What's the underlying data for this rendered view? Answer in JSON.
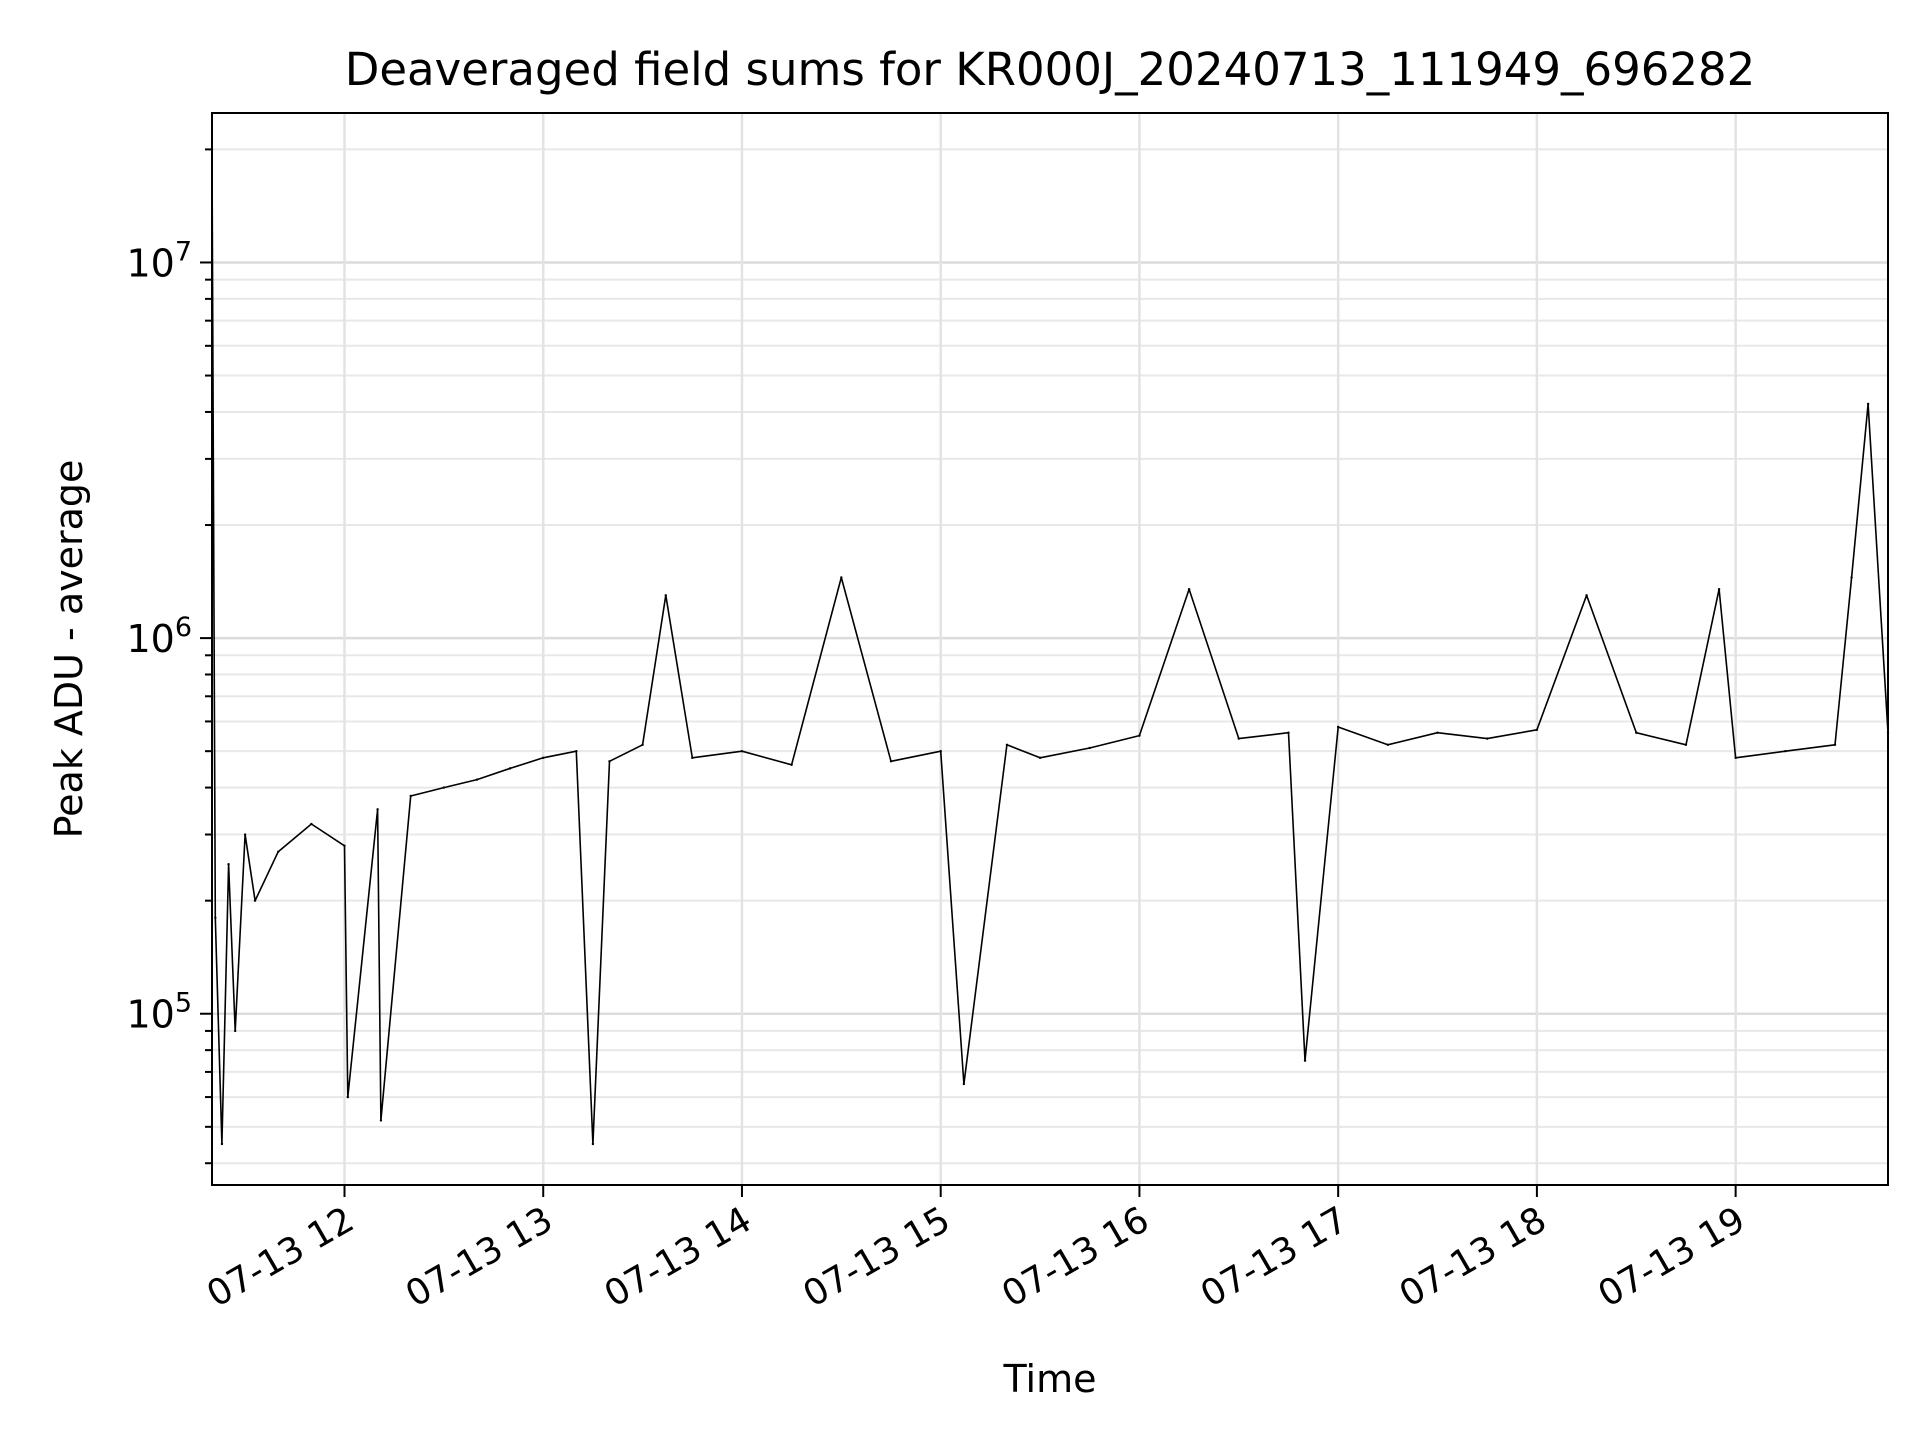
{
  "chart_data": {
    "type": "line",
    "title": "Deaveraged field sums for KR000J_20240713_111949_696282",
    "xlabel": "Time",
    "ylabel": "Peak ADU - average",
    "x_tick_labels": [
      "07-13 12",
      "07-13 13",
      "07-13 14",
      "07-13 15",
      "07-13 16",
      "07-13 17",
      "07-13 18",
      "07-13 19"
    ],
    "x_tick_values": [
      "2024-07-13T12:00",
      "2024-07-13T13:00",
      "2024-07-13T14:00",
      "2024-07-13T15:00",
      "2024-07-13T16:00",
      "2024-07-13T17:00",
      "2024-07-13T18:00",
      "2024-07-13T19:00"
    ],
    "xlim": [
      "2024-07-13T11:20",
      "2024-07-13T19:46"
    ],
    "y_tick_labels": [
      {
        "base": "10",
        "exp": "5",
        "value": 100000
      },
      {
        "base": "10",
        "exp": "6",
        "value": 1000000
      },
      {
        "base": "10",
        "exp": "7",
        "value": 10000000
      }
    ],
    "yscale": "log",
    "ylim": [
      35000,
      25000000
    ],
    "grid": true,
    "series": [
      {
        "color": "#000000",
        "x": [
          "2024-07-13T11:20",
          "2024-07-13T11:21",
          "2024-07-13T11:23",
          "2024-07-13T11:25",
          "2024-07-13T11:27",
          "2024-07-13T11:30",
          "2024-07-13T11:33",
          "2024-07-13T11:40",
          "2024-07-13T11:50",
          "2024-07-13T12:00",
          "2024-07-13T12:01",
          "2024-07-13T12:10",
          "2024-07-13T12:11",
          "2024-07-13T12:20",
          "2024-07-13T12:30",
          "2024-07-13T12:40",
          "2024-07-13T12:50",
          "2024-07-13T13:00",
          "2024-07-13T13:10",
          "2024-07-13T13:15",
          "2024-07-13T13:20",
          "2024-07-13T13:30",
          "2024-07-13T13:37",
          "2024-07-13T13:45",
          "2024-07-13T14:00",
          "2024-07-13T14:15",
          "2024-07-13T14:30",
          "2024-07-13T14:45",
          "2024-07-13T15:00",
          "2024-07-13T15:07",
          "2024-07-13T15:20",
          "2024-07-13T15:30",
          "2024-07-13T15:45",
          "2024-07-13T16:00",
          "2024-07-13T16:15",
          "2024-07-13T16:30",
          "2024-07-13T16:45",
          "2024-07-13T16:50",
          "2024-07-13T17:00",
          "2024-07-13T17:15",
          "2024-07-13T17:30",
          "2024-07-13T17:45",
          "2024-07-13T18:00",
          "2024-07-13T18:15",
          "2024-07-13T18:30",
          "2024-07-13T18:45",
          "2024-07-13T18:55",
          "2024-07-13T19:00",
          "2024-07-13T19:15",
          "2024-07-13T19:30",
          "2024-07-13T19:35",
          "2024-07-13T19:40",
          "2024-07-13T19:46"
        ],
        "y": [
          20000000,
          180000,
          45000,
          250000,
          90000,
          300000,
          200000,
          270000,
          320000,
          280000,
          60000,
          350000,
          52000,
          380000,
          400000,
          420000,
          450000,
          480000,
          500000,
          45000,
          470000,
          520000,
          1300000,
          480000,
          500000,
          460000,
          1450000,
          470000,
          500000,
          65000,
          520000,
          480000,
          510000,
          550000,
          1350000,
          540000,
          560000,
          75000,
          580000,
          520000,
          560000,
          540000,
          570000,
          1300000,
          560000,
          520000,
          1350000,
          480000,
          500000,
          520000,
          1450000,
          4200000,
          560000
        ]
      }
    ]
  }
}
